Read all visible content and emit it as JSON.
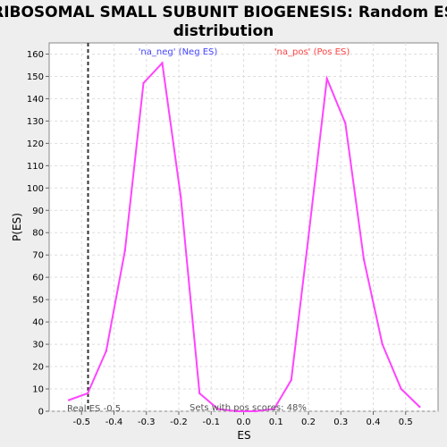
{
  "chart_data": {
    "type": "line",
    "title_lines": [
      "RIBOSOMAL SMALL SUBUNIT BIOGENESIS: Random ES",
      "distribution"
    ],
    "xlabel": "ES",
    "ylabel": "P(ES)",
    "xlim": [
      -0.6,
      0.6
    ],
    "ylim": [
      0,
      165
    ],
    "x_ticks": [
      -0.5,
      -0.4,
      -0.3,
      -0.2,
      -0.1,
      0.0,
      0.1,
      0.2,
      0.3,
      0.4,
      0.5
    ],
    "x_tick_labels": [
      "-0.5",
      "-0.4",
      "-0.3",
      "-0.2",
      "-0.1",
      "0.0",
      "0.1",
      "0.2",
      "0.3",
      "0.4",
      "0.5"
    ],
    "y_ticks": [
      0,
      10,
      20,
      30,
      40,
      50,
      60,
      70,
      80,
      90,
      100,
      110,
      120,
      130,
      140,
      150,
      160
    ],
    "y_tick_labels": [
      "0",
      "10",
      "20",
      "30",
      "40",
      "50",
      "60",
      "70",
      "80",
      "90",
      "100",
      "110",
      "120",
      "130",
      "140",
      "150",
      "160"
    ],
    "grid": true,
    "line_color": "#ff44ff",
    "series": [
      {
        "x": [
          -0.539,
          -0.481,
          -0.424,
          -0.366,
          -0.309,
          -0.251,
          -0.194,
          -0.136,
          -0.079,
          -0.021,
          0.037,
          0.094,
          0.147,
          0.2,
          0.257,
          0.314,
          0.371,
          0.428,
          0.486,
          0.543
        ],
        "y": [
          5,
          8,
          27,
          72,
          147,
          156,
          96,
          8,
          1,
          0,
          0,
          1,
          14,
          78,
          149,
          129,
          68,
          30,
          10,
          2
        ]
      }
    ],
    "annotations": {
      "neg_label": "'na_neg' (Neg ES)",
      "neg_label_color": "#4444ff",
      "pos_label": "'na_pos' (Pos ES)",
      "pos_label_color": "#ff4444",
      "real_es_label": "Real ES -0.5",
      "real_es_value": -0.48,
      "pos_scores_label": "Sets with pos scores: 48%"
    }
  }
}
